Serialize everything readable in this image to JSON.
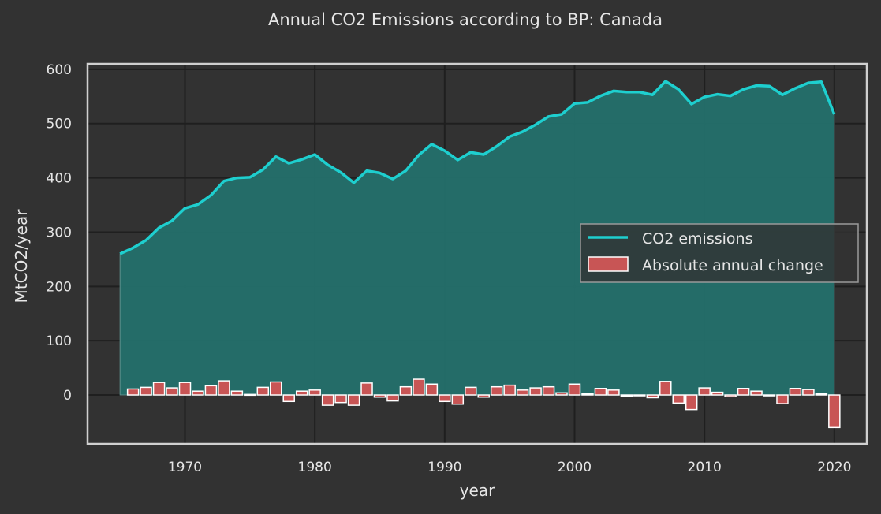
{
  "chart_data": {
    "type": "line",
    "title": "Annual CO2 Emissions according to BP: Canada",
    "xlabel": "year",
    "ylabel": "MtCO2/year",
    "xlim": [
      1962.5,
      2022.5
    ],
    "ylim": [
      -90,
      610
    ],
    "xticks": [
      1970,
      1980,
      1990,
      2000,
      2010,
      2020
    ],
    "yticks": [
      0,
      100,
      200,
      300,
      400,
      500,
      600
    ],
    "grid": true,
    "legend_position": "center-right",
    "colors": {
      "background": "#323232",
      "line": "#1ecfcf",
      "fill": "#24706b",
      "bar": "#c85555",
      "bar_edge": "#ffffff",
      "grid": "#1f1f1f",
      "frame": "#d0d0d0"
    },
    "series": [
      {
        "name": "CO2 emissions",
        "type": "line",
        "x": [
          1965,
          1966,
          1967,
          1968,
          1969,
          1970,
          1971,
          1972,
          1973,
          1974,
          1975,
          1976,
          1977,
          1978,
          1979,
          1980,
          1981,
          1982,
          1983,
          1984,
          1985,
          1986,
          1987,
          1988,
          1989,
          1990,
          1991,
          1992,
          1993,
          1994,
          1995,
          1996,
          1997,
          1998,
          1999,
          2000,
          2001,
          2002,
          2003,
          2004,
          2005,
          2006,
          2007,
          2008,
          2009,
          2010,
          2011,
          2012,
          2013,
          2014,
          2015,
          2016,
          2017,
          2018,
          2019,
          2020
        ],
        "values": [
          260,
          271,
          285,
          308,
          321,
          344,
          351,
          368,
          394,
          400,
          401,
          415,
          439,
          427,
          434,
          443,
          424,
          410,
          391,
          413,
          409,
          398,
          413,
          442,
          462,
          450,
          433,
          447,
          443,
          458,
          476,
          485,
          498,
          513,
          517,
          537,
          539,
          551,
          560,
          558,
          558,
          553,
          578,
          563,
          536,
          549,
          554,
          551,
          563,
          570,
          569,
          553,
          565,
          575,
          577,
          517
        ]
      },
      {
        "name": "Absolute annual change",
        "type": "bar",
        "x": [
          1966,
          1967,
          1968,
          1969,
          1970,
          1971,
          1972,
          1973,
          1974,
          1975,
          1976,
          1977,
          1978,
          1979,
          1980,
          1981,
          1982,
          1983,
          1984,
          1985,
          1986,
          1987,
          1988,
          1989,
          1990,
          1991,
          1992,
          1993,
          1994,
          1995,
          1996,
          1997,
          1998,
          1999,
          2000,
          2001,
          2002,
          2003,
          2004,
          2005,
          2006,
          2007,
          2008,
          2009,
          2010,
          2011,
          2012,
          2013,
          2014,
          2015,
          2016,
          2017,
          2018,
          2019,
          2020
        ],
        "values": [
          11,
          14,
          23,
          13,
          23,
          7,
          17,
          26,
          7,
          1,
          14,
          24,
          -12,
          7,
          9,
          -19,
          -14,
          -19,
          22,
          -4,
          -11,
          15,
          29,
          20,
          -12,
          -17,
          14,
          -4,
          15,
          18,
          9,
          13,
          15,
          4,
          20,
          2,
          12,
          9,
          -2,
          0,
          -5,
          25,
          -15,
          -27,
          13,
          5,
          -3,
          12,
          7,
          -1,
          -16,
          12,
          10,
          2,
          -60
        ]
      }
    ]
  }
}
